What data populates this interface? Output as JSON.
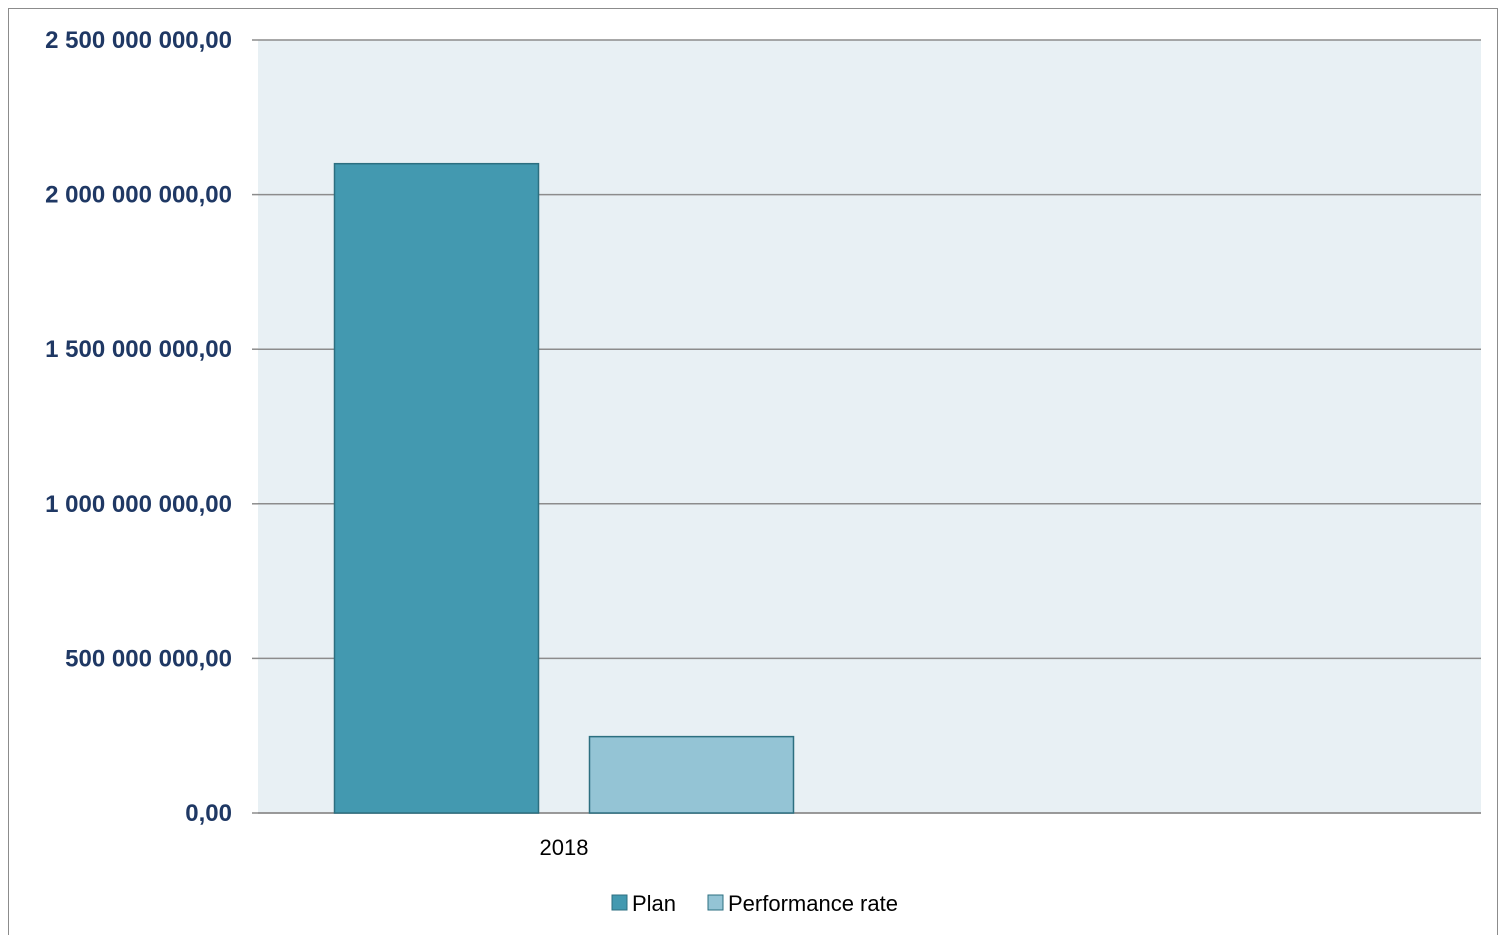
{
  "chart_data": {
    "type": "bar",
    "categories": [
      "2018"
    ],
    "series": [
      {
        "name": "Plan",
        "values": [
          2100000000
        ],
        "color": "#4399b0"
      },
      {
        "name": "Performance rate",
        "values": [
          247000000
        ],
        "color": "#94c4d5"
      }
    ],
    "y_ticks": [
      {
        "value": 0,
        "label": "0,00"
      },
      {
        "value": 500000000,
        "label": "500 000 000,00"
      },
      {
        "value": 1000000000,
        "label": "1 000 000 000,00"
      },
      {
        "value": 1500000000,
        "label": "1 500 000 000,00"
      },
      {
        "value": 2000000000,
        "label": "2 000 000 000,00"
      },
      {
        "value": 2500000000,
        "label": "2 500 000 000,00"
      }
    ],
    "ylim": [
      0,
      2500000000
    ],
    "grid": true,
    "legend_position": "bottom",
    "plot_background": "#e8f0f4",
    "gridline_color": "#8c8c8c"
  }
}
